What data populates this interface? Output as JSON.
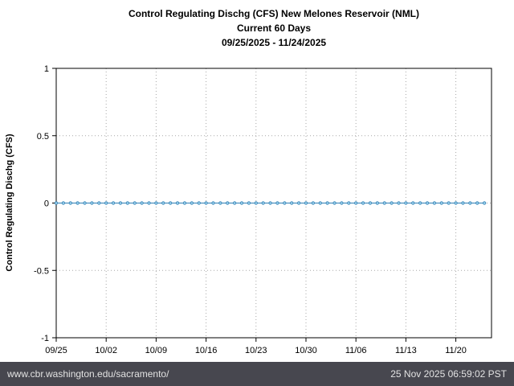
{
  "titles": {
    "line1": "Control Regulating Dischg (CFS) New Melones Reservoir (NML)",
    "line2": "Current 60 Days",
    "line3": "09/25/2025 - 11/24/2025"
  },
  "chart_data": {
    "type": "line",
    "title": "Control Regulating Dischg (CFS) New Melones Reservoir (NML)",
    "subtitle": "Current 60 Days",
    "date_range": "09/25/2025 - 11/24/2025",
    "ylabel": "Control Regulating Dischg (CFS)",
    "ylim": [
      -1,
      1
    ],
    "yticks": [
      -1,
      -0.5,
      0,
      0.5,
      1
    ],
    "ytick_labels": [
      "-1",
      "-0.5",
      "0",
      "0.5",
      "1"
    ],
    "x_start_date": "09/25/2025",
    "x_end_date": "11/24/2025",
    "x_frequency": "daily",
    "x_domain_days": 61,
    "xticks": [
      0,
      7,
      14,
      21,
      28,
      35,
      42,
      49,
      56
    ],
    "xtick_labels": [
      "09/25",
      "10/02",
      "10/09",
      "10/16",
      "10/23",
      "10/30",
      "11/06",
      "11/13",
      "11/20"
    ],
    "grid": true,
    "legend": "none",
    "line_color": "#2e7eb3",
    "marker": "circle",
    "marker_fill": "#9fd4ee",
    "values": [
      0,
      0,
      0,
      0,
      0,
      0,
      0,
      0,
      0,
      0,
      0,
      0,
      0,
      0,
      0,
      0,
      0,
      0,
      0,
      0,
      0,
      0,
      0,
      0,
      0,
      0,
      0,
      0,
      0,
      0,
      0,
      0,
      0,
      0,
      0,
      0,
      0,
      0,
      0,
      0,
      0,
      0,
      0,
      0,
      0,
      0,
      0,
      0,
      0,
      0,
      0,
      0,
      0,
      0,
      0,
      0,
      0,
      0,
      0,
      0,
      0
    ]
  },
  "footer": {
    "url": "www.cbr.washington.edu/sacramento/",
    "timestamp": "25 Nov 2025 06:59:02 PST",
    "bg_color": "#47474f",
    "text_color": "#e2e2e2"
  }
}
